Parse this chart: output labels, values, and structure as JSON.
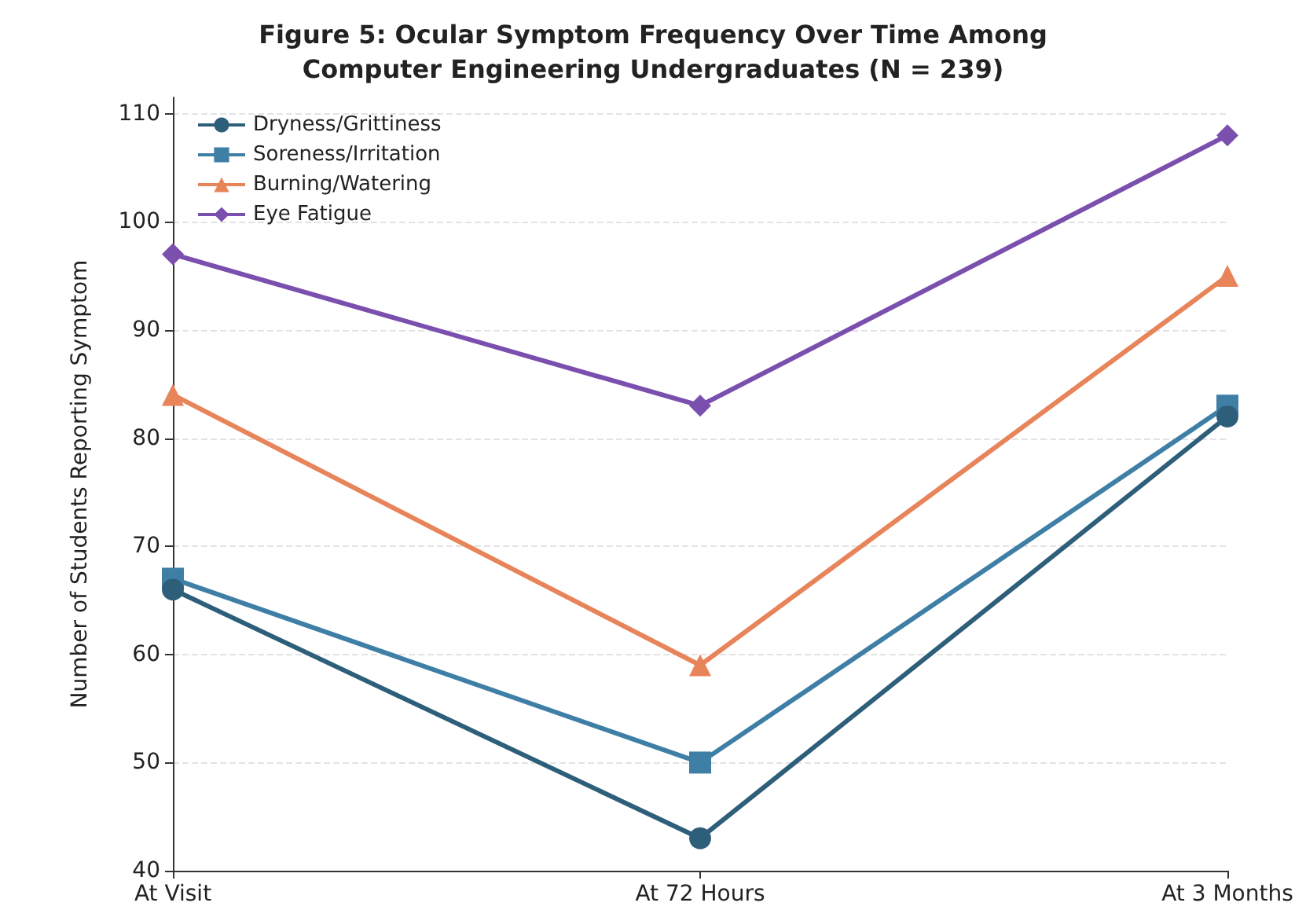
{
  "chart_data": {
    "type": "line",
    "title": "Figure 5: Ocular Symptom Frequency Over Time Among\nComputer Engineering Undergraduates (N = 239)",
    "ylabel": "Number of Students Reporting Symptom",
    "categories": [
      "At Visit",
      "At 72 Hours",
      "At 3 Months"
    ],
    "series": [
      {
        "name": "Dryness/Grittiness",
        "color": "#2e5f7a",
        "marker": "circle",
        "values": [
          66,
          43,
          82
        ]
      },
      {
        "name": "Soreness/Irritation",
        "color": "#3f7fa6",
        "marker": "square",
        "values": [
          67,
          50,
          83
        ]
      },
      {
        "name": "Burning/Watering",
        "color": "#e8845a",
        "marker": "triangle",
        "values": [
          84,
          59,
          95
        ]
      },
      {
        "name": "Eye Fatigue",
        "color": "#7b4fae",
        "marker": "diamond",
        "values": [
          97,
          83,
          108
        ]
      }
    ],
    "ylim": [
      40,
      111.5
    ],
    "yticks": [
      40,
      50,
      60,
      70,
      80,
      90,
      100,
      110
    ],
    "grid": "y",
    "legend": "top left",
    "line_style": "solid"
  }
}
